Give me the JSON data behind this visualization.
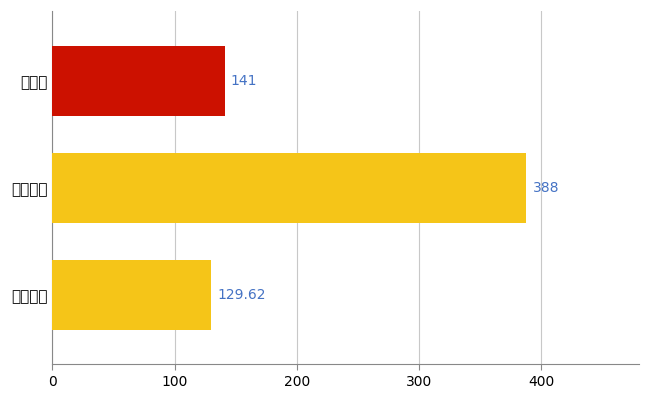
{
  "categories": [
    "全国平均",
    "全国最大",
    "長野県"
  ],
  "values": [
    129.62,
    388,
    141
  ],
  "bar_colors": [
    "#F5C518",
    "#F5C518",
    "#CC1100"
  ],
  "value_labels": [
    "129.62",
    "388",
    "141"
  ],
  "value_color": "#4472C4",
  "xlim": [
    0,
    480
  ],
  "xticks": [
    0,
    100,
    200,
    300,
    400
  ],
  "background_color": "#FFFFFF",
  "grid_color": "#C8C8C8",
  "bar_height": 0.65,
  "figsize": [
    6.5,
    4.0
  ],
  "dpi": 100,
  "label_fontsize": 11,
  "value_fontsize": 10
}
